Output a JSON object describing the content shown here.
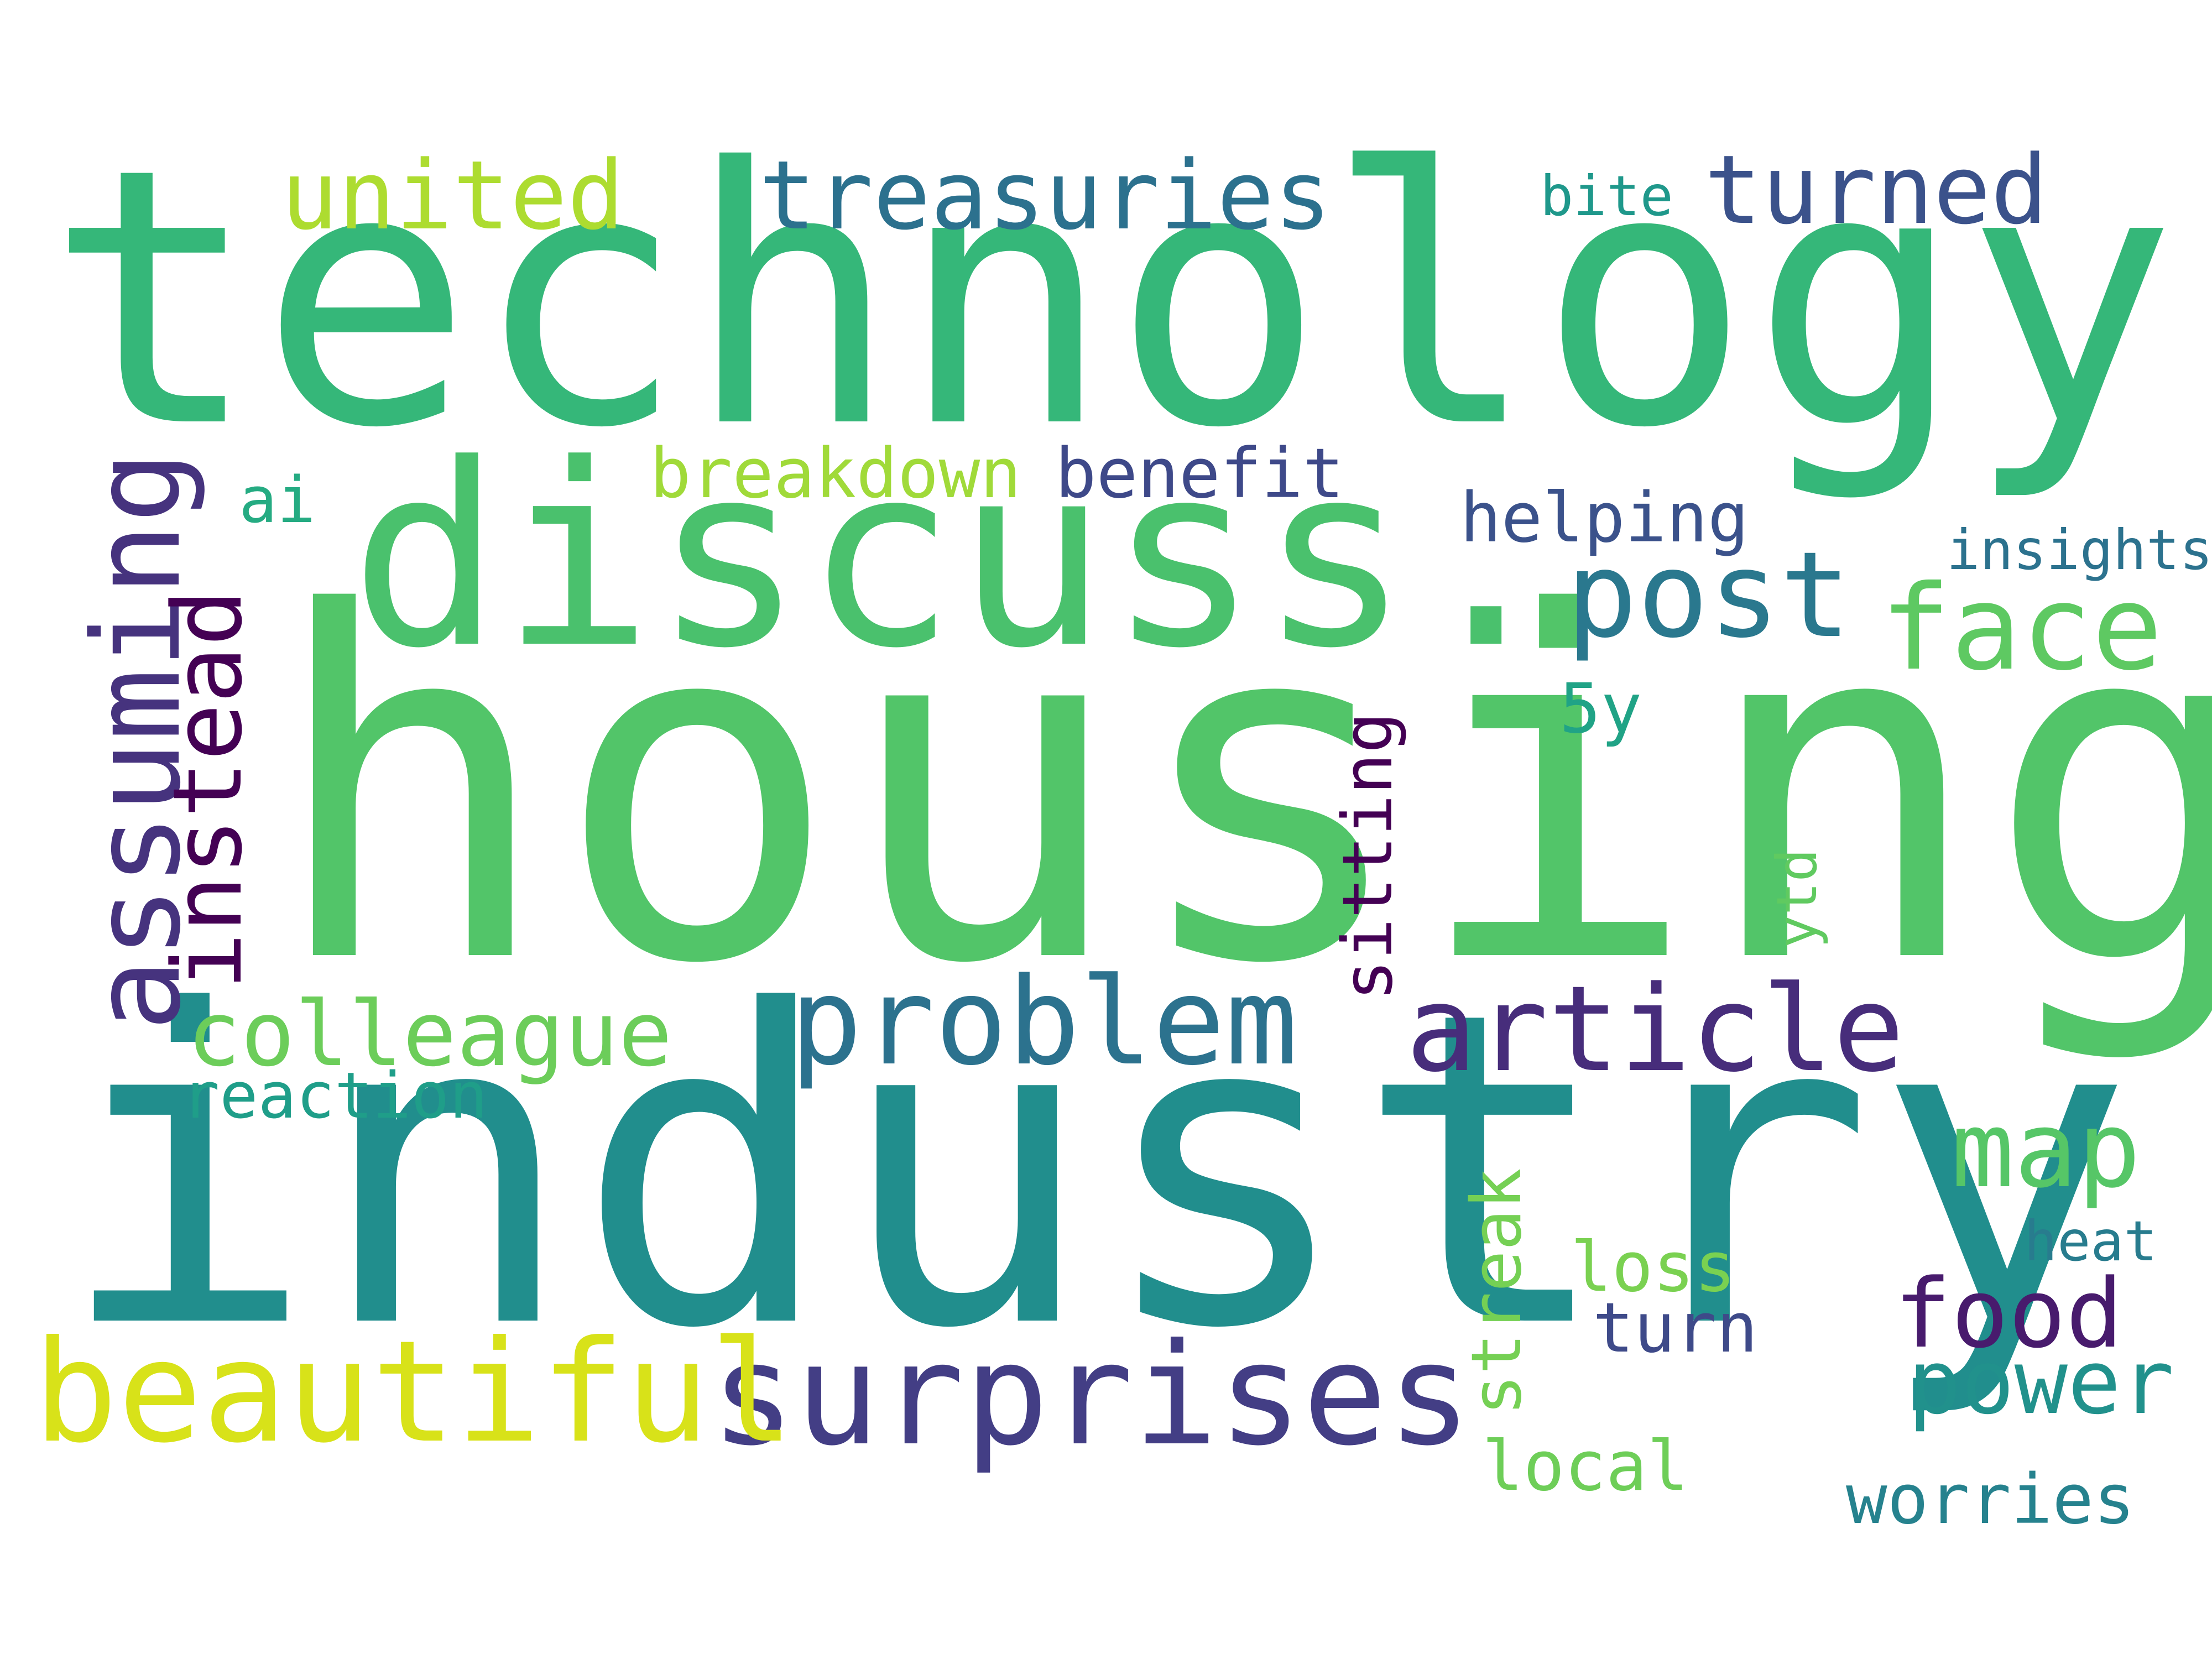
{
  "words": [
    {
      "text": "housing",
      "color": "#52c569"
    },
    {
      "text": "industry",
      "color": "#218e8d"
    },
    {
      "text": "technology",
      "color": "#35b779"
    },
    {
      "text": "discuss.",
      "color": "#4ac16d"
    },
    {
      "text": "surprises",
      "color": "#433e85"
    },
    {
      "text": "beautiful",
      "color": "#d8e219"
    },
    {
      "text": "problem",
      "color": "#2c728e"
    },
    {
      "text": "article",
      "color": "#472d7b"
    },
    {
      "text": "post",
      "color": "#2a788e"
    },
    {
      "text": "face",
      "color": "#5ec962"
    },
    {
      "text": "assuming",
      "color": "#46337e"
    },
    {
      "text": "instead",
      "color": "#440154"
    },
    {
      "text": "treasuries",
      "color": "#2c718e"
    },
    {
      "text": "turned",
      "color": "#3b528b"
    },
    {
      "text": "united",
      "color": "#addc30"
    },
    {
      "text": "map",
      "color": "#56c667"
    },
    {
      "text": "colleague",
      "color": "#6ccd5a"
    },
    {
      "text": "food",
      "color": "#481b6d"
    },
    {
      "text": "power",
      "color": "#21918c"
    },
    {
      "text": "breakdown",
      "color": "#a0da39"
    },
    {
      "text": "benefit",
      "color": "#3e4989"
    },
    {
      "text": "helping",
      "color": "#3b528b"
    },
    {
      "text": "sitting",
      "color": "#440154"
    },
    {
      "text": "streak",
      "color": "#75d054"
    },
    {
      "text": "worries",
      "color": "#26828e"
    },
    {
      "text": "local",
      "color": "#6ece58"
    },
    {
      "text": "loss",
      "color": "#7ad151"
    },
    {
      "text": "turn",
      "color": "#3e4a89"
    },
    {
      "text": "reaction",
      "color": "#1f9e89"
    },
    {
      "text": "5y",
      "color": "#20a386"
    },
    {
      "text": "ai",
      "color": "#25ab82"
    },
    {
      "text": "insights",
      "color": "#2c728e"
    },
    {
      "text": "heat",
      "color": "#287c8e"
    },
    {
      "text": "bite",
      "color": "#1f988b"
    },
    {
      "text": "ytd",
      "color": "#60ca60"
    }
  ]
}
